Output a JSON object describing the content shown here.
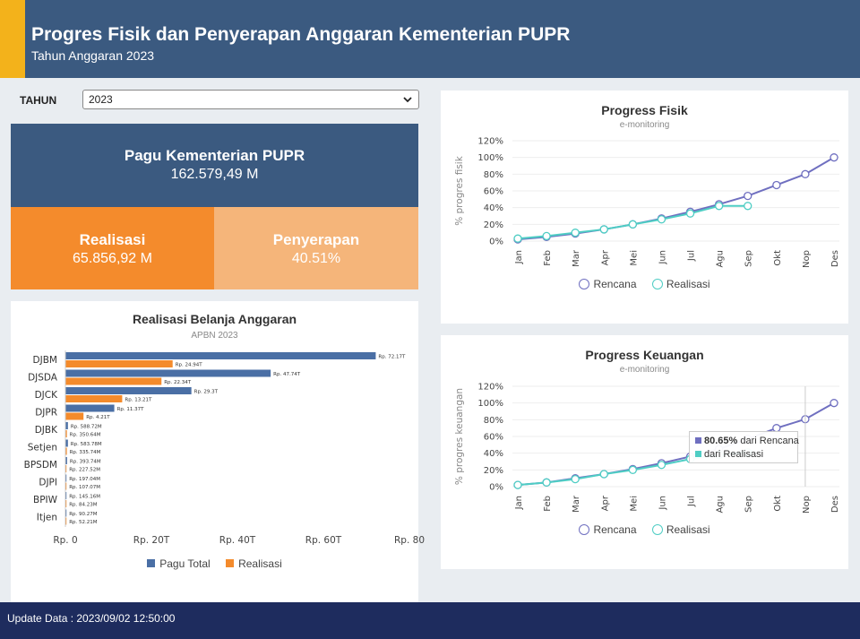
{
  "header": {
    "title": "Progres Fisik dan Penyerapan Anggaran Kementerian PUPR",
    "subtitle": "Tahun Anggaran 2023"
  },
  "filter": {
    "label": "TAHUN",
    "selected": "2023"
  },
  "summary": {
    "pagu_label": "Pagu Kementerian PUPR",
    "pagu_value": "162.579,49 M",
    "realisasi_label": "Realisasi",
    "realisasi_value": "65.856,92 M",
    "serapan_label": "Penyerapan",
    "serapan_value": "40.51%"
  },
  "colors": {
    "header": "#3b5a80",
    "accent": "#f3b21b",
    "realisasi": "#f48b2c",
    "serapan": "#f5b57a",
    "rencana": "#6f6fc0",
    "realisasi_line": "#4ecdc4",
    "bar_pagu": "#4a6fa5",
    "bar_real": "#f48b2c",
    "footer": "#1e2c5e"
  },
  "footer": {
    "update": "Update Data : 2023/09/02 12:50:00"
  },
  "tooltip": {
    "rencana": "80.65%",
    "rencana_suffix": " dari Rencana",
    "realisasi_text": "dari Realisasi"
  },
  "chart_data": [
    {
      "type": "bar",
      "title": "Realisasi Belanja Anggaran",
      "subtitle": "APBN 2023",
      "categories": [
        "DJBM",
        "DJSDA",
        "DJCK",
        "DJPR",
        "DJBK",
        "Setjen",
        "BPSDM",
        "DJPI",
        "BPIW",
        "Itjen"
      ],
      "series": [
        {
          "name": "Pagu Total",
          "values": [
            72.17,
            47.74,
            29.3,
            11.37,
            0.58872,
            0.58378,
            0.39374,
            0.19704,
            0.14516,
            0.09027
          ],
          "labels": [
            "Rp. 72.17T",
            "Rp. 47.74T",
            "Rp. 29.3T",
            "Rp. 11.37T",
            "Rp. 588.72M",
            "Rp. 583.78M",
            "Rp. 393.74M",
            "Rp. 197.04M",
            "Rp. 145.16M",
            "Rp. 90.27M"
          ]
        },
        {
          "name": "Realisasi",
          "values": [
            24.94,
            22.34,
            13.21,
            4.21,
            0.35064,
            0.33574,
            0.22752,
            0.10707,
            0.08423,
            0.05221
          ],
          "labels": [
            "Rp. 24.94T",
            "Rp. 22.34T",
            "Rp. 13.21T",
            "Rp. 4.21T",
            "Rp. 350.64M",
            "Rp. 335.74M",
            "Rp. 227.52M",
            "Rp. 107.07M",
            "Rp. 84.23M",
            "Rp. 52.21M"
          ]
        }
      ],
      "xlim": [
        0,
        80
      ],
      "xticks": [
        "Rp. 0",
        "Rp. 20T",
        "Rp. 40T",
        "Rp. 60T",
        "Rp. 80"
      ],
      "legend": "bottom"
    },
    {
      "type": "line",
      "title": "Progress Fisik",
      "subtitle": "e-monitoring",
      "ylabel": "% progres fisik",
      "x": [
        "Jan",
        "Feb",
        "Mar",
        "Apr",
        "Mei",
        "Jun",
        "Jul",
        "Agu",
        "Sep",
        "Okt",
        "Nop",
        "Des"
      ],
      "yticks": [
        "0%",
        "20%",
        "40%",
        "60%",
        "80%",
        "100%",
        "120%"
      ],
      "ylim": [
        0,
        120
      ],
      "series": [
        {
          "name": "Rencana",
          "values": [
            2,
            5,
            9,
            14,
            20,
            27,
            35,
            44,
            54,
            67,
            80,
            100
          ]
        },
        {
          "name": "Realisasi",
          "values": [
            3,
            6,
            10,
            14,
            20,
            26,
            33,
            42,
            42,
            null,
            null,
            null
          ]
        }
      ],
      "legend": "bottom"
    },
    {
      "type": "line",
      "title": "Progress Keuangan",
      "subtitle": "e-monitoring",
      "ylabel": "% progres keuangan",
      "x": [
        "Jan",
        "Feb",
        "Mar",
        "Apr",
        "Mei",
        "Jun",
        "Jul",
        "Agu",
        "Sep",
        "Okt",
        "Nop",
        "Des"
      ],
      "yticks": [
        "0%",
        "20%",
        "40%",
        "60%",
        "80%",
        "100%",
        "120%"
      ],
      "ylim": [
        0,
        120
      ],
      "series": [
        {
          "name": "Rencana",
          "values": [
            2,
            5,
            10,
            15,
            21,
            28,
            36,
            45,
            57,
            70,
            80.65,
            100
          ]
        },
        {
          "name": "Realisasi",
          "values": [
            2,
            5,
            9,
            15,
            20,
            26,
            33,
            38,
            41,
            null,
            null,
            null
          ]
        }
      ],
      "legend": "bottom"
    }
  ]
}
